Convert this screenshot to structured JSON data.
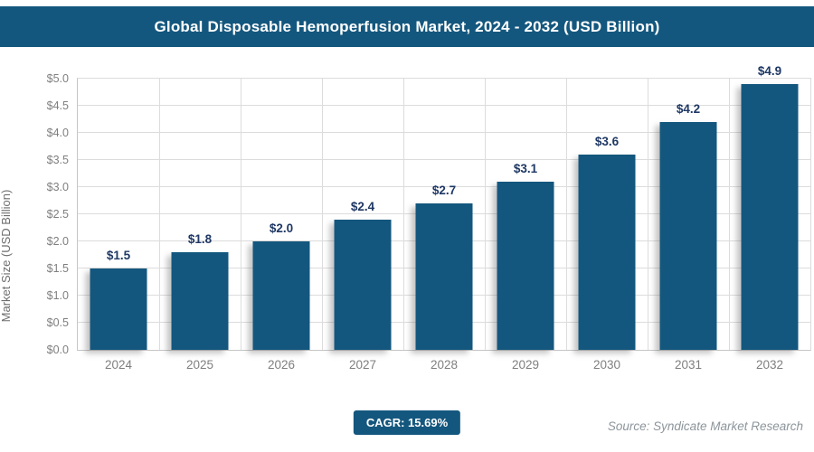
{
  "header": {
    "title": "Global Disposable Hemoperfusion Market, 2024 - 2032 (USD Billion)",
    "background_color": "#14577E",
    "text_color": "#FFFFFF"
  },
  "chart_data": {
    "type": "bar",
    "title": "Global Disposable Hemoperfusion Market, 2024 - 2032 (USD Billion)",
    "categories": [
      "2024",
      "2025",
      "2026",
      "2027",
      "2028",
      "2029",
      "2030",
      "2031",
      "2032"
    ],
    "values": [
      1.5,
      1.8,
      2.0,
      2.4,
      2.7,
      3.1,
      3.6,
      4.2,
      4.9
    ],
    "bar_labels": [
      "$1.5",
      "$1.8",
      "$2.0",
      "$2.4",
      "$2.7",
      "$3.1",
      "$3.6",
      "$4.2",
      "$4.9"
    ],
    "xlabel": "",
    "ylabel": "Market Size (USD Billion)",
    "ylim": [
      0,
      5
    ],
    "ytick_step": 0.5,
    "ytick_labels": [
      "$0.0",
      "$0.5",
      "$1.0",
      "$1.5",
      "$2.0",
      "$2.5",
      "$3.0",
      "$3.5",
      "$4.0",
      "$4.5",
      "$5.0"
    ],
    "grid": "horizontal and vertical, light gray",
    "legend": "none",
    "bar_color": "#14577E",
    "value_label_color": "#1F3864"
  },
  "footer": {
    "cagr_label": "CAGR: 15.69%",
    "cagr_badge_color": "#14577E",
    "source": "Source: Syndicate Market Research"
  }
}
